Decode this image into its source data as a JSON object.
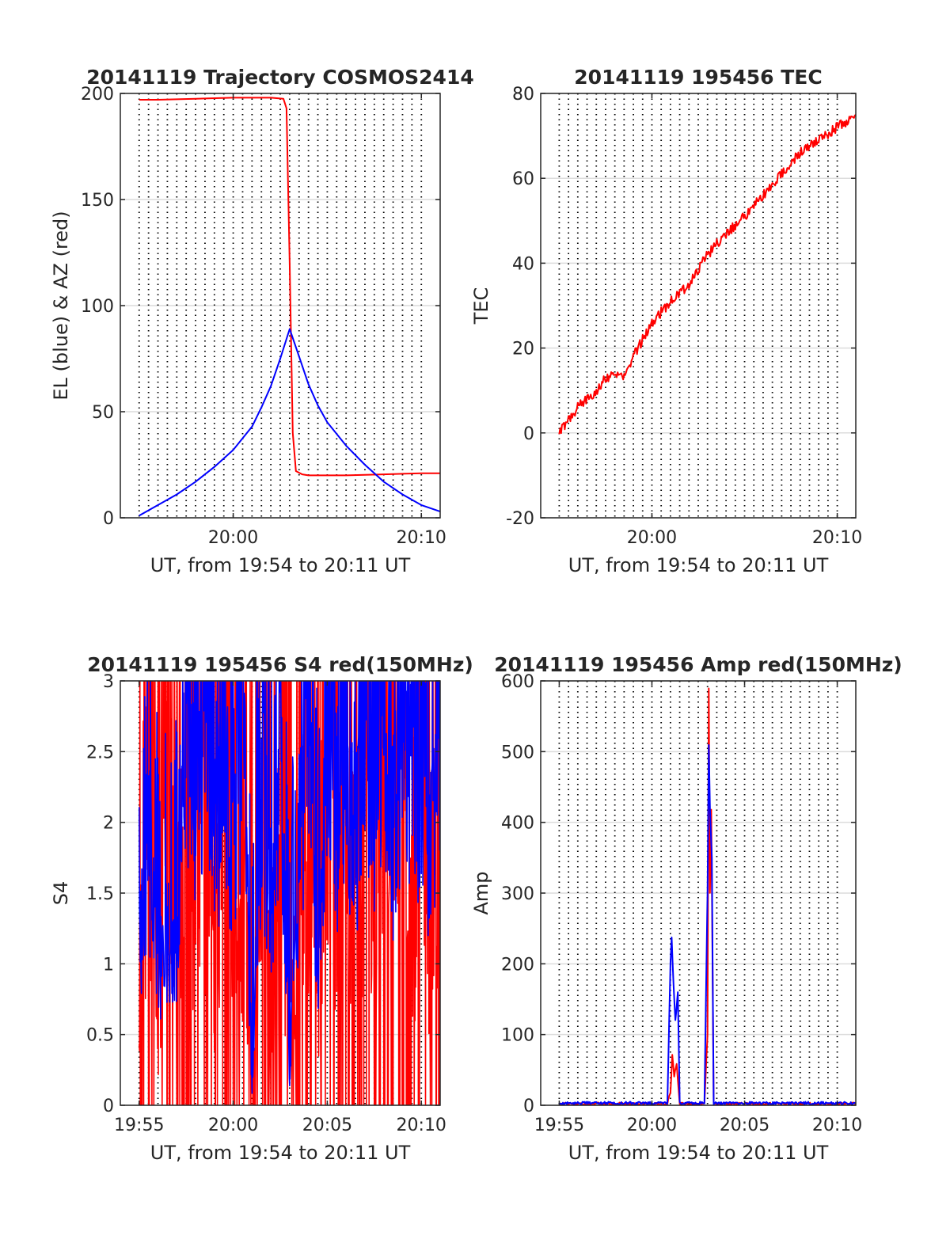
{
  "chart_data": [
    {
      "type": "line",
      "title": "20141119 Trajectory COSMOS2414",
      "xlabel": "UT, from 19:54 to 20:11 UT",
      "ylabel": "EL (blue) & AZ (red)",
      "xlim": [
        "19:54",
        "20:11"
      ],
      "ylim": [
        0,
        200
      ],
      "yticks": [
        "0",
        "50",
        "100",
        "150",
        "200"
      ],
      "xticks": [
        "20:00",
        "20:10"
      ],
      "grid": "y major gridlines, dotted vertical lines every 30 s",
      "series": [
        {
          "color": "#ff0000",
          "x": [
            "19:55:00",
            "19:56:00",
            "19:58:00",
            "20:00:00",
            "20:02:00",
            "20:02:40",
            "20:02:50",
            "20:03:00",
            "20:03:10",
            "20:03:20",
            "20:03:40",
            "20:04:00",
            "20:06:00",
            "20:08:00",
            "20:10:00",
            "20:11:00"
          ],
          "y": [
            197,
            197,
            197.5,
            198,
            198,
            197.5,
            193,
            120,
            40,
            22,
            20.5,
            20,
            20,
            20.5,
            21,
            21
          ]
        },
        {
          "color": "#0000ff",
          "x": [
            "19:55:00",
            "19:56:00",
            "19:57:00",
            "19:58:00",
            "19:59:00",
            "20:00:00",
            "20:01:00",
            "20:01:30",
            "20:02:00",
            "20:02:30",
            "20:03:00",
            "20:03:30",
            "20:04:00",
            "20:04:30",
            "20:05:00",
            "20:06:00",
            "20:07:00",
            "20:08:00",
            "20:09:00",
            "20:10:00",
            "20:11:00"
          ],
          "y": [
            1,
            6,
            11,
            17,
            24,
            32,
            43,
            52,
            62,
            75,
            89,
            76,
            63,
            53,
            45,
            34,
            25,
            17,
            11,
            6,
            3
          ]
        }
      ]
    },
    {
      "type": "line",
      "title": "20141119 195456 TEC",
      "xlabel": "UT, from 19:54 to 20:11 UT",
      "ylabel": "TEC",
      "xlim": [
        "19:54",
        "20:11"
      ],
      "ylim": [
        -20,
        80
      ],
      "yticks": [
        "-20",
        "0",
        "20",
        "40",
        "60",
        "80"
      ],
      "xticks": [
        "20:00",
        "20:10"
      ],
      "series": [
        {
          "color": "#ff0000",
          "x": [
            "19:55:00",
            "19:56:00",
            "19:57:00",
            "19:57:30",
            "19:58:00",
            "19:58:30",
            "19:59:00",
            "20:00:00",
            "20:01:00",
            "20:02:00",
            "20:03:00",
            "20:04:00",
            "20:05:00",
            "20:06:00",
            "20:07:00",
            "20:08:00",
            "20:09:00",
            "20:10:00",
            "20:11:00"
          ],
          "y": [
            0,
            6,
            10,
            13,
            14,
            13,
            18,
            26,
            31,
            35,
            42,
            47,
            51,
            56,
            61,
            66,
            69,
            72,
            75
          ]
        }
      ]
    },
    {
      "type": "line",
      "title": "20141119 195456 S4 red(150MHz)",
      "xlabel": "UT, from 19:54 to 20:11 UT",
      "ylabel": "S4",
      "xlim": [
        "19:54",
        "20:11"
      ],
      "ylim": [
        0,
        3
      ],
      "yticks": [
        "0",
        "0.5",
        "1",
        "1.5",
        "2",
        "2.5",
        "3"
      ],
      "xticks": [
        "19:55",
        "20:00",
        "20:05",
        "20:10"
      ],
      "series": [
        {
          "color": "#ff0000",
          "x": [
            "19:55:00",
            "19:55:30",
            "19:56:00",
            "19:56:30",
            "19:57:00",
            "19:57:30",
            "19:58:00",
            "19:58:30",
            "19:59:00",
            "19:59:30",
            "20:00:00",
            "20:00:30",
            "20:01:00",
            "20:01:30",
            "20:02:00",
            "20:02:30",
            "20:03:00",
            "20:03:30",
            "20:04:00",
            "20:04:30",
            "20:05:00",
            "20:05:30",
            "20:06:00",
            "20:06:30",
            "20:07:00",
            "20:07:30",
            "20:08:00",
            "20:08:30",
            "20:09:00",
            "20:09:30",
            "20:10:00",
            "20:10:30",
            "20:11:00"
          ],
          "y": [
            0.9,
            3,
            0.5,
            2.8,
            0.8,
            3,
            1.5,
            2.5,
            1.2,
            2.3,
            1.8,
            1.4,
            0.7,
            1.3,
            0.9,
            1.6,
            0.6,
            1.1,
            2.5,
            0.8,
            3,
            1.6,
            3,
            1.2,
            2.8,
            1.4,
            3,
            1.5,
            2.9,
            1.3,
            3,
            1.2,
            2.7
          ]
        },
        {
          "color": "#0000ff",
          "x": [
            "19:55:00",
            "19:55:30",
            "19:56:00",
            "19:56:30",
            "19:57:00",
            "19:57:30",
            "19:58:00",
            "19:58:30",
            "19:59:00",
            "19:59:30",
            "20:00:00",
            "20:00:30",
            "20:01:00",
            "20:01:30",
            "20:02:00",
            "20:02:30",
            "20:03:00",
            "20:03:30",
            "20:04:00",
            "20:04:30",
            "20:05:00",
            "20:05:30",
            "20:06:00",
            "20:06:30",
            "20:07:00",
            "20:07:30",
            "20:08:00",
            "20:08:30",
            "20:09:00",
            "20:09:30",
            "20:10:00",
            "20:10:30",
            "20:11:00"
          ],
          "y": [
            1.0,
            1.9,
            0.9,
            1.2,
            0.9,
            2.6,
            2.1,
            2.7,
            1.8,
            2.4,
            1.6,
            2.8,
            0.1,
            2.3,
            1.4,
            2.5,
            0.2,
            1.8,
            2.9,
            0.9,
            2.8,
            2.0,
            2.6,
            1.7,
            2.9,
            2.2,
            2.7,
            1.9,
            2.8,
            2.1,
            2.5,
            1.8,
            2.7
          ]
        }
      ]
    },
    {
      "type": "line",
      "title": "20141119 195456 Amp red(150MHz)",
      "xlabel": "UT, from 19:54 to 20:11 UT",
      "ylabel": "Amp",
      "xlim": [
        "19:54",
        "20:11"
      ],
      "ylim": [
        0,
        600
      ],
      "yticks": [
        "0",
        "100",
        "200",
        "300",
        "400",
        "500",
        "600"
      ],
      "xticks": [
        "19:55",
        "20:00",
        "20:05",
        "20:10"
      ],
      "series": [
        {
          "color": "#ff0000",
          "x": [
            "19:55:00",
            "20:00:50",
            "20:01:00",
            "20:01:06",
            "20:01:12",
            "20:01:20",
            "20:01:30",
            "20:02:50",
            "20:03:00",
            "20:03:04",
            "20:03:08",
            "20:03:12",
            "20:03:20",
            "20:11:00"
          ],
          "y": [
            2,
            2,
            20,
            70,
            40,
            60,
            2,
            2,
            100,
            590,
            300,
            420,
            2,
            2
          ]
        },
        {
          "color": "#0000ff",
          "x": [
            "19:55:00",
            "20:00:50",
            "20:01:00",
            "20:01:04",
            "20:01:10",
            "20:01:16",
            "20:01:24",
            "20:01:30",
            "20:02:50",
            "20:03:00",
            "20:03:04",
            "20:03:08",
            "20:03:14",
            "20:03:20",
            "20:11:00"
          ],
          "y": [
            3,
            3,
            200,
            238,
            170,
            120,
            160,
            3,
            3,
            300,
            510,
            420,
            350,
            3,
            3
          ]
        }
      ]
    }
  ]
}
